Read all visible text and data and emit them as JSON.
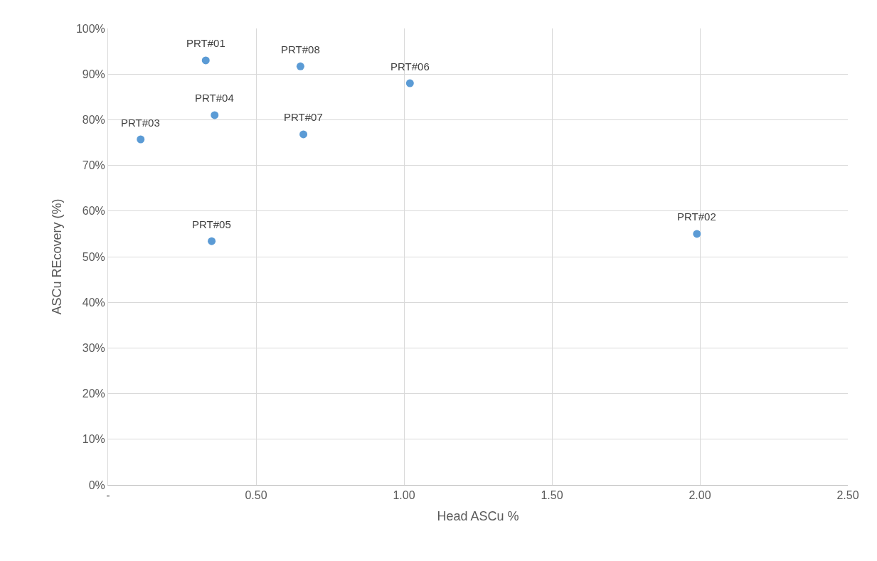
{
  "chart_data": {
    "type": "scatter",
    "xlabel": "Head ASCu %",
    "ylabel": "ASCu REcovery (%)",
    "x": [
      0.33,
      1.99,
      0.11,
      0.36,
      0.35,
      1.02,
      0.66,
      0.65
    ],
    "values": [
      93.0,
      55.0,
      75.7,
      81.0,
      53.4,
      88.0,
      76.8,
      91.7
    ],
    "annotations": [
      {
        "text": "PRT#01",
        "x": 0.33,
        "y": 93.0
      },
      {
        "text": "PRT#02",
        "x": 1.99,
        "y": 55.0
      },
      {
        "text": "PRT#03",
        "x": 0.11,
        "y": 75.7
      },
      {
        "text": "PRT#04",
        "x": 0.36,
        "y": 81.0
      },
      {
        "text": "PRT#05",
        "x": 0.35,
        "y": 53.4
      },
      {
        "text": "PRT#06",
        "x": 1.02,
        "y": 88.0
      },
      {
        "text": "PRT#07",
        "x": 0.66,
        "y": 76.8
      },
      {
        "text": "PRT#08",
        "x": 0.65,
        "y": 91.7
      }
    ],
    "color": "#5b9bd5",
    "marker": "circle",
    "xlim": [
      0,
      2.5
    ],
    "xticks": [
      {
        "value": 0,
        "label": "-"
      },
      {
        "value": 0.5,
        "label": "0.50"
      },
      {
        "value": 1.0,
        "label": "1.00"
      },
      {
        "value": 1.5,
        "label": "1.50"
      },
      {
        "value": 2.0,
        "label": "2.00"
      },
      {
        "value": 2.5,
        "label": "2.50"
      }
    ],
    "ylim": [
      0,
      100
    ],
    "yticks": [
      {
        "value": 0,
        "label": "0%"
      },
      {
        "value": 10,
        "label": "10%"
      },
      {
        "value": 20,
        "label": "20%"
      },
      {
        "value": 30,
        "label": "30%"
      },
      {
        "value": 40,
        "label": "40%"
      },
      {
        "value": 50,
        "label": "50%"
      },
      {
        "value": 60,
        "label": "60%"
      },
      {
        "value": 70,
        "label": "70%"
      },
      {
        "value": 80,
        "label": "80%"
      },
      {
        "value": 90,
        "label": "90%"
      },
      {
        "value": 100,
        "label": "100%"
      }
    ],
    "grid": true
  }
}
